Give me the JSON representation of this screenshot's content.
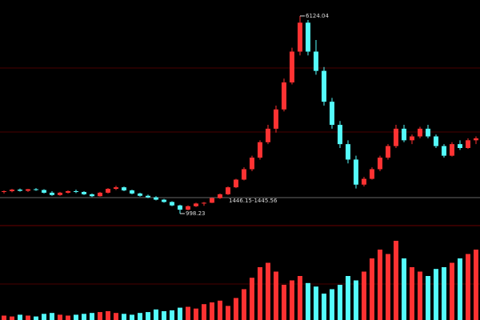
{
  "chart_data": {
    "type": "candlestick",
    "open": [
      1560,
      1580,
      1620,
      1590,
      1630,
      1610,
      1540,
      1480,
      1540,
      1580,
      1560,
      1500,
      1450,
      1540,
      1640,
      1680,
      1600,
      1520,
      1460,
      1420,
      1360,
      1300,
      1210,
      1100,
      1190,
      1260,
      1280,
      1400,
      1500,
      1680,
      1880,
      2150,
      2450,
      2850,
      3200,
      3700,
      4400,
      5200,
      5950,
      5200,
      4700,
      3900,
      3300,
      2800,
      2400,
      1750,
      1900,
      2150,
      2450,
      2750,
      3200,
      2900,
      3000,
      3200,
      3000,
      2750,
      2500,
      2800,
      2700,
      2900
    ],
    "high": [
      1600,
      1640,
      1650,
      1640,
      1660,
      1630,
      1580,
      1560,
      1600,
      1620,
      1580,
      1520,
      1560,
      1660,
      1720,
      1700,
      1620,
      1540,
      1490,
      1450,
      1380,
      1320,
      1230,
      1210,
      1280,
      1300,
      1420,
      1520,
      1700,
      1900,
      2200,
      2500,
      2900,
      3300,
      3800,
      4500,
      5300,
      6124.04,
      6020,
      5500,
      4800,
      4000,
      3400,
      2900,
      2500,
      1950,
      2200,
      2500,
      2800,
      3300,
      3300,
      3050,
      3250,
      3300,
      3050,
      2800,
      2850,
      2900,
      2950,
      3000
    ],
    "low": [
      1520,
      1550,
      1570,
      1560,
      1590,
      1520,
      1460,
      1460,
      1520,
      1530,
      1480,
      1430,
      1440,
      1520,
      1610,
      1580,
      1500,
      1440,
      1400,
      1340,
      1280,
      1190,
      998.23,
      1080,
      1170,
      1200,
      1270,
      1380,
      1480,
      1660,
      1860,
      2100,
      2400,
      2800,
      3100,
      3650,
      4350,
      5100,
      5100,
      4600,
      3800,
      3200,
      2700,
      2300,
      1650,
      1700,
      1880,
      2100,
      2400,
      2700,
      2850,
      2800,
      2950,
      2950,
      2700,
      2450,
      2480,
      2650,
      2680,
      2800
    ],
    "close": [
      1580,
      1620,
      1590,
      1630,
      1610,
      1540,
      1480,
      1540,
      1580,
      1560,
      1500,
      1450,
      1540,
      1640,
      1680,
      1600,
      1520,
      1460,
      1420,
      1360,
      1300,
      1210,
      1100,
      1190,
      1260,
      1280,
      1400,
      1500,
      1680,
      1880,
      2150,
      2450,
      2850,
      3200,
      3700,
      4400,
      5200,
      5950,
      5200,
      4700,
      3900,
      3300,
      2800,
      2400,
      1750,
      1900,
      2150,
      2450,
      2750,
      3200,
      2900,
      3000,
      3200,
      3000,
      2750,
      2500,
      2800,
      2700,
      2900,
      2950
    ],
    "volume": {
      "values": [
        5,
        4,
        6,
        5,
        4,
        7,
        8,
        6,
        5,
        6,
        7,
        8,
        9,
        10,
        8,
        7,
        6,
        8,
        9,
        12,
        10,
        11,
        14,
        15,
        13,
        18,
        20,
        22,
        16,
        25,
        35,
        48,
        60,
        65,
        55,
        40,
        45,
        50,
        42,
        38,
        30,
        35,
        40,
        50,
        45,
        55,
        70,
        80,
        75,
        90,
        70,
        60,
        55,
        50,
        58,
        60,
        65,
        70,
        75,
        80
      ],
      "ylim": [
        0,
        100
      ]
    },
    "ylim": [
      687,
      6538
    ],
    "up_color": "#ff3232",
    "down_color": "#54fcfc",
    "max_index": 37,
    "min_index": 22,
    "annotation": "1446.15-1445.56"
  }
}
